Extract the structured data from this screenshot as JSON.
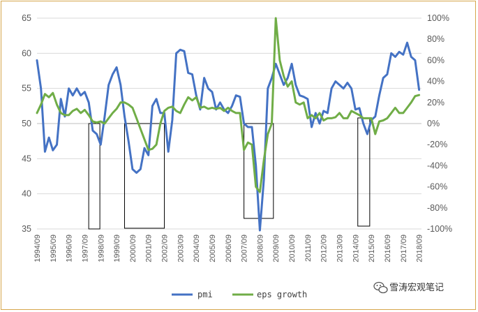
{
  "chart_data": {
    "type": "line",
    "title": "",
    "xlabel": "",
    "ylabel": "",
    "y_left_range": [
      35,
      65
    ],
    "y_left_ticks": [
      "35",
      "40",
      "45",
      "50",
      "55",
      "60",
      "65"
    ],
    "y_right_range": [
      -100,
      100
    ],
    "y_right_ticks": [
      "-100%",
      "-80%",
      "-60%",
      "-40%",
      "-20%",
      "0%",
      "20%",
      "40%",
      "60%",
      "80%",
      "100%"
    ],
    "categories": [
      "1994/09",
      "1995/09",
      "1996/09",
      "1997/09",
      "1998/09",
      "1999/09",
      "2000/09",
      "2001/09",
      "2002/09",
      "2003/09",
      "2004/09",
      "2005/09",
      "2006/09",
      "2007/09",
      "2008/09",
      "2009/09",
      "2010/09",
      "2011/09",
      "2012/09",
      "2013/09",
      "2014/09",
      "2015/09",
      "2016/09",
      "2017/09",
      "2018/09"
    ],
    "series": [
      {
        "name": "pmi",
        "axis": "left",
        "color": "#4472c4",
        "x": [
          1994.75,
          1995.0,
          1995.25,
          1995.5,
          1995.75,
          1996.0,
          1996.25,
          1996.5,
          1996.75,
          1997.0,
          1997.25,
          1997.5,
          1997.75,
          1998.0,
          1998.25,
          1998.5,
          1998.75,
          1999.0,
          1999.25,
          1999.5,
          1999.75,
          2000.0,
          2000.25,
          2000.5,
          2000.75,
          2001.0,
          2001.25,
          2001.5,
          2001.75,
          2002.0,
          2002.25,
          2002.5,
          2002.75,
          2003.0,
          2003.25,
          2003.5,
          2003.75,
          2004.0,
          2004.25,
          2004.5,
          2004.75,
          2005.0,
          2005.25,
          2005.5,
          2005.75,
          2006.0,
          2006.25,
          2006.5,
          2006.75,
          2007.0,
          2007.25,
          2007.5,
          2007.75,
          2008.0,
          2008.25,
          2008.5,
          2008.75,
          2009.0,
          2009.25,
          2009.5,
          2009.75,
          2010.0,
          2010.25,
          2010.5,
          2010.75,
          2011.0,
          2011.25,
          2011.5,
          2011.75,
          2012.0,
          2012.25,
          2012.5,
          2012.75,
          2013.0,
          2013.25,
          2013.5,
          2013.75,
          2014.0,
          2014.25,
          2014.5,
          2014.75,
          2015.0,
          2015.25,
          2015.5,
          2015.75,
          2016.0,
          2016.25,
          2016.5,
          2016.75,
          2017.0,
          2017.25,
          2017.5,
          2017.75,
          2018.0,
          2018.25,
          2018.5,
          2018.75
        ],
        "values": [
          59,
          55,
          46,
          48,
          46.2,
          47,
          53.5,
          51,
          55,
          54,
          55,
          54,
          54.5,
          53,
          49,
          48.5,
          47,
          51,
          55.5,
          57,
          58,
          55.5,
          51,
          47.5,
          43.5,
          43,
          43.5,
          46.5,
          45.5,
          52.5,
          53.5,
          51.5,
          51.5,
          46,
          50.5,
          60,
          60.5,
          60.3,
          57.2,
          57,
          54,
          52,
          56.5,
          55,
          54.5,
          52,
          53,
          52,
          51.5,
          52.5,
          54,
          53.8,
          50,
          49.5,
          49.5,
          44,
          34.8,
          42,
          55,
          56.5,
          58.5,
          57,
          55.5,
          56.5,
          58.5,
          55.5,
          54,
          53.8,
          53.5,
          49.5,
          51.5,
          50,
          51.8,
          51.5,
          55,
          56,
          55.5,
          55,
          55.8,
          55,
          52,
          52.2,
          50,
          48.5,
          50.5,
          51,
          54,
          56.5,
          57,
          60,
          59.5,
          60.2,
          59.8,
          61.5,
          59.5,
          59,
          54.8
        ]
      },
      {
        "name": "eps growth",
        "axis": "right",
        "color": "#70ad47",
        "x": [
          1994.75,
          1995.0,
          1995.25,
          1995.5,
          1995.75,
          1996.0,
          1996.25,
          1996.5,
          1996.75,
          1997.0,
          1997.25,
          1997.5,
          1997.75,
          1998.0,
          1998.25,
          1998.5,
          1998.75,
          1999.0,
          1999.25,
          1999.5,
          1999.75,
          2000.0,
          2000.25,
          2000.5,
          2000.75,
          2001.0,
          2001.25,
          2001.5,
          2001.75,
          2002.0,
          2002.25,
          2002.5,
          2002.75,
          2003.0,
          2003.25,
          2003.5,
          2003.75,
          2004.0,
          2004.25,
          2004.5,
          2004.75,
          2005.0,
          2005.25,
          2005.5,
          2005.75,
          2006.0,
          2006.25,
          2006.5,
          2006.75,
          2007.0,
          2007.25,
          2007.5,
          2007.75,
          2008.0,
          2008.25,
          2008.5,
          2008.75,
          2009.0,
          2009.25,
          2009.5,
          2009.75,
          2010.0,
          2010.25,
          2010.5,
          2010.75,
          2011.0,
          2011.25,
          2011.5,
          2011.75,
          2012.0,
          2012.25,
          2012.5,
          2012.75,
          2013.0,
          2013.25,
          2013.5,
          2013.75,
          2014.0,
          2014.25,
          2014.5,
          2014.75,
          2015.0,
          2015.25,
          2015.5,
          2015.75,
          2016.0,
          2016.25,
          2016.5,
          2016.75,
          2017.0,
          2017.25,
          2017.5,
          2017.75,
          2018.0,
          2018.25,
          2018.5,
          2018.75
        ],
        "values": [
          10,
          18,
          28,
          25,
          29,
          18,
          10,
          8,
          8,
          12,
          14,
          10,
          13,
          8,
          2,
          1,
          2,
          0,
          5,
          10,
          14,
          20,
          20,
          18,
          15,
          5,
          -5,
          -15,
          -25,
          -24,
          -20,
          0,
          12,
          15,
          16,
          12,
          10,
          18,
          25,
          22,
          25,
          15,
          16,
          14,
          15,
          14,
          15,
          12,
          15,
          12,
          10,
          10,
          -25,
          -18,
          -20,
          -60,
          -65,
          -35,
          -10,
          0,
          100,
          60,
          45,
          35,
          40,
          20,
          18,
          20,
          5,
          8,
          5,
          10,
          3,
          5,
          5,
          6,
          10,
          5,
          5,
          12,
          10,
          8,
          5,
          5,
          5,
          -10,
          2,
          3,
          5,
          10,
          15,
          10,
          10,
          15,
          20,
          26,
          27
        ]
      }
    ],
    "recession_boxes": [
      {
        "from": 1998.0,
        "to": 1998.7,
        "low": 35,
        "high": 50
      },
      {
        "from": 2000.25,
        "to": 2002.75,
        "low": 35.1,
        "high": 50
      },
      {
        "from": 2007.75,
        "to": 2009.6,
        "low": 36.5,
        "high": 50
      },
      {
        "from": 2014.9,
        "to": 2015.65,
        "low": 35.4,
        "high": 50.8
      }
    ],
    "legend_position": "bottom-center"
  },
  "watermark": {
    "text": "雪涛宏观笔记"
  }
}
